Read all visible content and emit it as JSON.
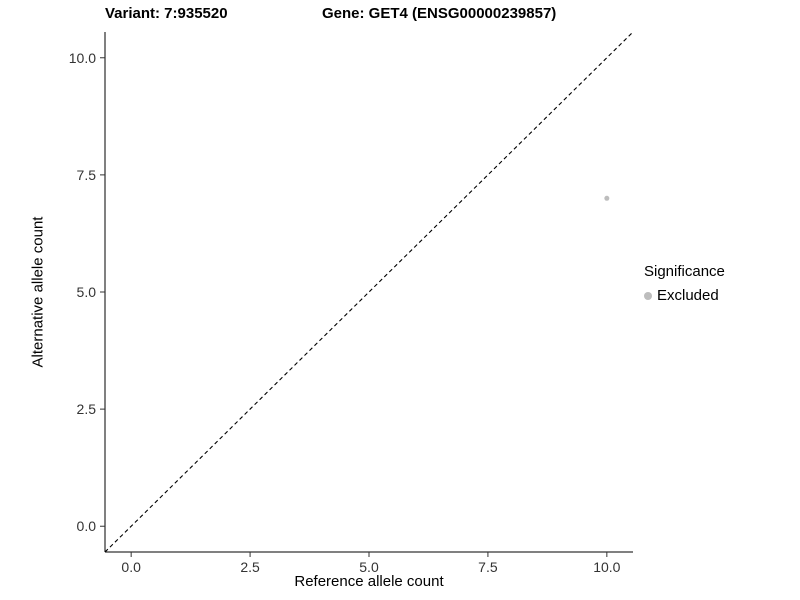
{
  "figure": {
    "title_left": "Variant: 7:935520",
    "title_right": "Gene: GET4 (ENSG00000239857)"
  },
  "chart_data": {
    "type": "scatter",
    "title_left": "Variant: 7:935520",
    "title_right": "Gene: GET4 (ENSG00000239857)",
    "xlabel": "Reference allele count",
    "ylabel": "Alternative allele count",
    "xlim": [
      -0.55,
      10.55
    ],
    "ylim": [
      -0.55,
      10.55
    ],
    "xtick_values": [
      0,
      2.5,
      5,
      7.5,
      10
    ],
    "xtick_labels": [
      "0.0",
      "2.5",
      "5.0",
      "7.5",
      "10.0"
    ],
    "ytick_values": [
      0,
      2.5,
      5,
      7.5,
      10
    ],
    "ytick_labels": [
      "0.0",
      "2.5",
      "5.0",
      "7.5",
      "10.0"
    ],
    "grid": false,
    "series": [
      {
        "name": "Excluded",
        "color": "#bdbdbd",
        "points": [
          {
            "x": 10,
            "y": 7
          }
        ]
      }
    ],
    "reference_line": {
      "type": "identity",
      "style": "dashed",
      "color": "#000000",
      "from": [
        -0.55,
        -0.55
      ],
      "to": [
        10.55,
        10.55
      ]
    },
    "legend": {
      "title": "Significance",
      "position": "right",
      "entries": [
        {
          "label": "Excluded",
          "color": "#bdbdbd"
        }
      ]
    },
    "colors": {
      "axis_line": "#000000",
      "tick": "#333333",
      "tick_label": "#333333",
      "point": "#bdbdbd",
      "background": "#ffffff"
    }
  }
}
